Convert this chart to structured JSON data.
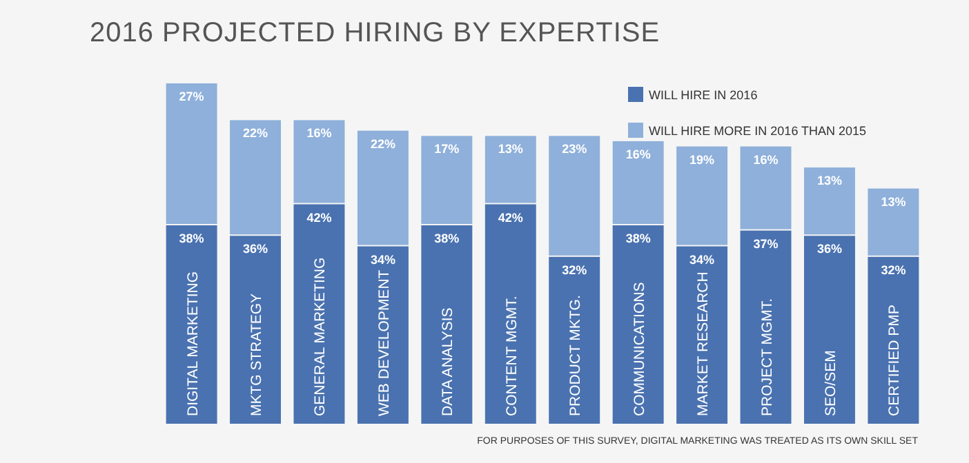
{
  "chart_data": {
    "type": "bar",
    "title": "2016 PROJECTED HIRING BY EXPERTISE",
    "stacked": true,
    "legend": "top right",
    "annotations": [
      "FOR PURPOSES OF THIS SURVEY, DIGITAL MARKETING WAS TREATED AS ITS OWN SKILL SET"
    ],
    "categories": [
      "DIGITAL MARKETING",
      "MKTG STRATEGY",
      "GENERAL MARKETING",
      "WEB DEVELOPMENT",
      "DATA ANALYSIS",
      "CONTENT MGMT.",
      "PRODUCT MKTG.",
      "COMMUNICATIONS",
      "MARKET RESEARCH",
      "PROJECT MGMT.",
      "SEO/SEM",
      "CERTIFIED PMP"
    ],
    "series": [
      {
        "name": "WILL HIRE IN 2016",
        "color": "#4a72b0",
        "values": [
          38,
          36,
          42,
          34,
          38,
          42,
          32,
          38,
          34,
          37,
          36,
          32
        ],
        "value_labels": [
          "38%",
          "36%",
          "42%",
          "34%",
          "38%",
          "42%",
          "32%",
          "38%",
          "34%",
          "37%",
          "36%",
          "32%"
        ]
      },
      {
        "name": "WILL HIRE MORE IN 2016 THAN 2015",
        "color": "#8eb0da",
        "values": [
          27,
          22,
          16,
          22,
          17,
          13,
          23,
          16,
          19,
          16,
          13,
          13
        ],
        "value_labels": [
          "27%",
          "22%",
          "16%",
          "22%",
          "17%",
          "13%",
          "23%",
          "16%",
          "19%",
          "16%",
          "13%",
          "13%"
        ]
      }
    ]
  }
}
